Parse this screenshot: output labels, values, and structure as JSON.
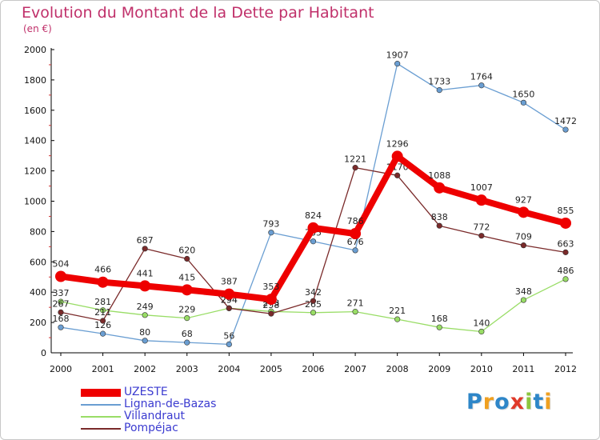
{
  "header": {
    "title": "Evolution du Montant de la Dette par Habitant",
    "subtitle": "(en €)"
  },
  "logo": {
    "text": "Proxiti",
    "letters": [
      {
        "char": "P",
        "color": "#2e86c8"
      },
      {
        "char": "r",
        "color": "#f0a020"
      },
      {
        "char": "o",
        "color": "#2e86c8"
      },
      {
        "char": "x",
        "color": "#e03a2a"
      },
      {
        "char": "i",
        "color": "#8cc63e"
      },
      {
        "char": "t",
        "color": "#2e86c8"
      },
      {
        "char": "i",
        "color": "#f0a020"
      }
    ]
  },
  "chart_data": {
    "type": "line",
    "title": "Evolution du Montant de la Dette par Habitant",
    "subtitle": "(en €)",
    "xlabel": "",
    "ylabel": "",
    "x": [
      "2000",
      "2001",
      "2002",
      "2003",
      "2004",
      "2005",
      "2006",
      "2007",
      "2008",
      "2009",
      "2010",
      "2011",
      "2012"
    ],
    "ylim": [
      0,
      2000
    ],
    "yticks": [
      "0",
      "200",
      "400",
      "600",
      "800",
      "1000",
      "1200",
      "1400",
      "1600",
      "1800",
      "2000"
    ],
    "grid": false,
    "legend_position": "bottom-left",
    "series": [
      {
        "name": "UZESTE",
        "color": "#ee0000",
        "width": 8,
        "values": [
          504,
          466,
          441,
          415,
          387,
          353,
          824,
          786,
          1296,
          1088,
          1007,
          927,
          855
        ],
        "labels": [
          "504",
          "466",
          "441",
          "415",
          "387",
          "353",
          "824",
          "786",
          "1296",
          "1088",
          "1007",
          "927",
          "855"
        ]
      },
      {
        "name": "Lignan-de-Bazas",
        "color": "#6a9ed2",
        "width": 1.3,
        "values": [
          168,
          126,
          80,
          68,
          56,
          793,
          735,
          676,
          1907,
          1733,
          1764,
          1650,
          1472
        ],
        "labels": [
          "168",
          "126",
          "80",
          "68",
          "56",
          "793",
          "735",
          "676",
          "1907",
          "1733",
          "1764",
          "1650",
          "1472"
        ]
      },
      {
        "name": "Villandraut",
        "color": "#99dd66",
        "width": 1.3,
        "values": [
          337,
          281,
          249,
          229,
          294,
          273,
          265,
          271,
          221,
          168,
          140,
          348,
          486
        ],
        "labels": [
          "337",
          "281",
          "249",
          "229",
          "294",
          "273",
          "265",
          "271",
          "221",
          "168",
          "140",
          "348",
          "486"
        ]
      },
      {
        "name": "Pompéjac",
        "color": "#7a2a2a",
        "width": 1.3,
        "values": [
          267,
          211,
          687,
          620,
          294,
          258,
          342,
          1221,
          1170,
          838,
          772,
          709,
          663
        ],
        "labels": [
          "267",
          "211",
          "687",
          "620",
          "294",
          "258",
          "342",
          "1221",
          "1170",
          "838",
          "772",
          "709",
          "663"
        ]
      }
    ]
  }
}
